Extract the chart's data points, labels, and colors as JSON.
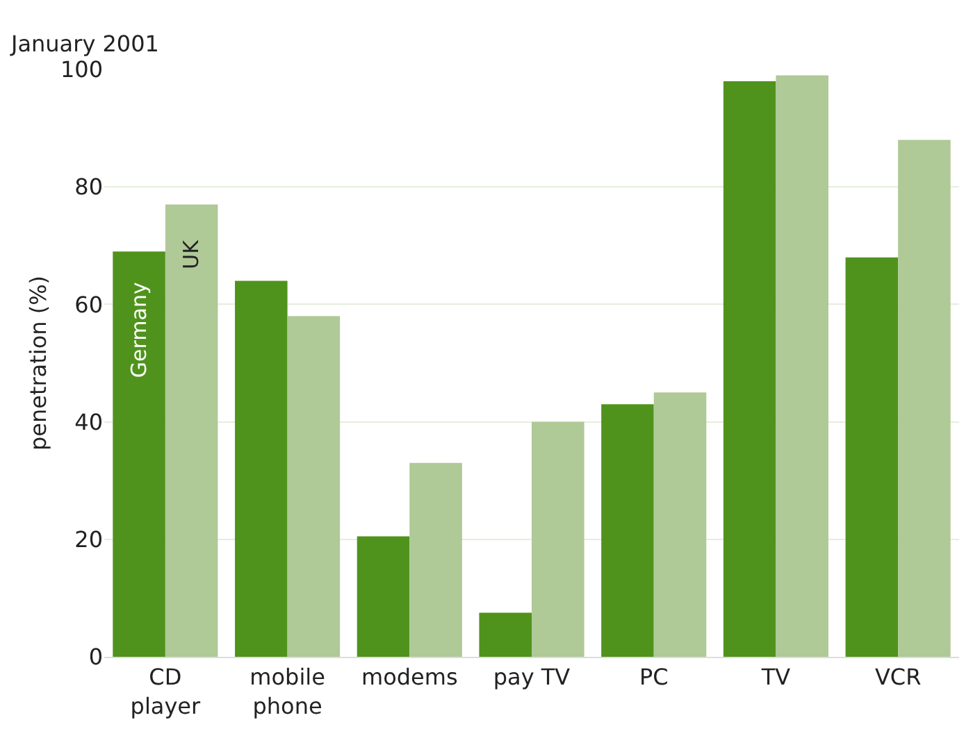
{
  "chart_data": {
    "type": "bar",
    "subtitle": "January 2001",
    "ylabel": "penetration (%)",
    "categories": [
      "CD player",
      "mobile phone",
      "modems",
      "pay TV",
      "PC",
      "TV",
      "VCR"
    ],
    "series": [
      {
        "name": "Germany",
        "color": "#50931c",
        "values": [
          69,
          64,
          20.5,
          7.5,
          43,
          98,
          68
        ]
      },
      {
        "name": "UK",
        "color": "#afc997",
        "values": [
          77,
          58,
          33,
          40,
          45,
          99,
          88
        ]
      }
    ],
    "ylim": [
      0,
      100
    ],
    "yticks": [
      0,
      20,
      40,
      60,
      80,
      100
    ],
    "grid": "y",
    "legend": false
  }
}
